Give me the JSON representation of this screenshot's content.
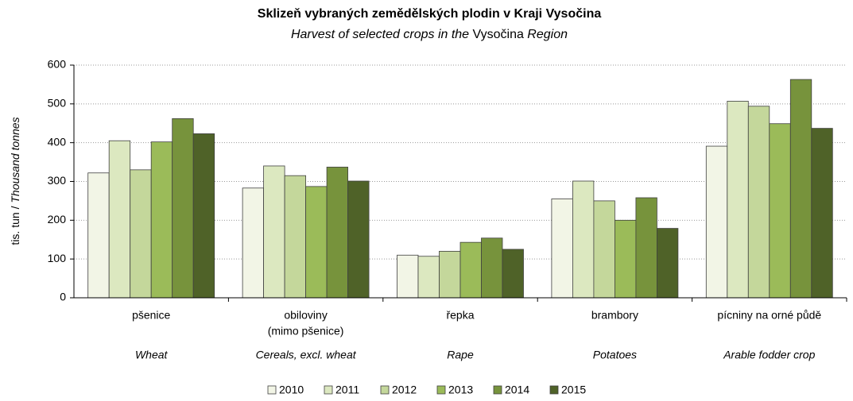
{
  "chart_data": {
    "type": "bar",
    "title": "Sklizeň vybraných  zemědělských  plodin v Kraji Vysočina",
    "subtitle": [
      "Harvest of selected crops in the ",
      "Vysočina",
      " Region"
    ],
    "y_label": [
      "tis. tun / ",
      "Thousand tonnes"
    ],
    "categories": [
      [
        "pšenice"
      ],
      [
        "obiloviny",
        "(mimo pšenice)"
      ],
      [
        "řepka"
      ],
      [
        "brambory"
      ],
      [
        "pícniny na orné půdě"
      ]
    ],
    "categories_en": [
      "Wheat",
      "Cereals, excl. wheat",
      "Rape",
      "Potatoes",
      "Arable fodder crop"
    ],
    "series": [
      {
        "name": "2010",
        "color": "#f2f5e6",
        "values": [
          322,
          283,
          110,
          255,
          391
        ]
      },
      {
        "name": "2011",
        "color": "#dce8c0",
        "values": [
          405,
          340,
          107,
          301,
          507
        ]
      },
      {
        "name": "2012",
        "color": "#c4d79b",
        "values": [
          330,
          315,
          120,
          250,
          494
        ]
      },
      {
        "name": "2013",
        "color": "#9bbb59",
        "values": [
          402,
          287,
          143,
          200,
          449
        ]
      },
      {
        "name": "2014",
        "color": "#77933c",
        "values": [
          462,
          337,
          154,
          258,
          563
        ]
      },
      {
        "name": "2015",
        "color": "#4f6228",
        "values": [
          423,
          301,
          125,
          179,
          437
        ]
      }
    ],
    "ylim": [
      0,
      600
    ],
    "yticks": [
      0,
      100,
      200,
      300,
      400,
      500,
      600
    ],
    "grid": true,
    "legend": "bottom"
  }
}
